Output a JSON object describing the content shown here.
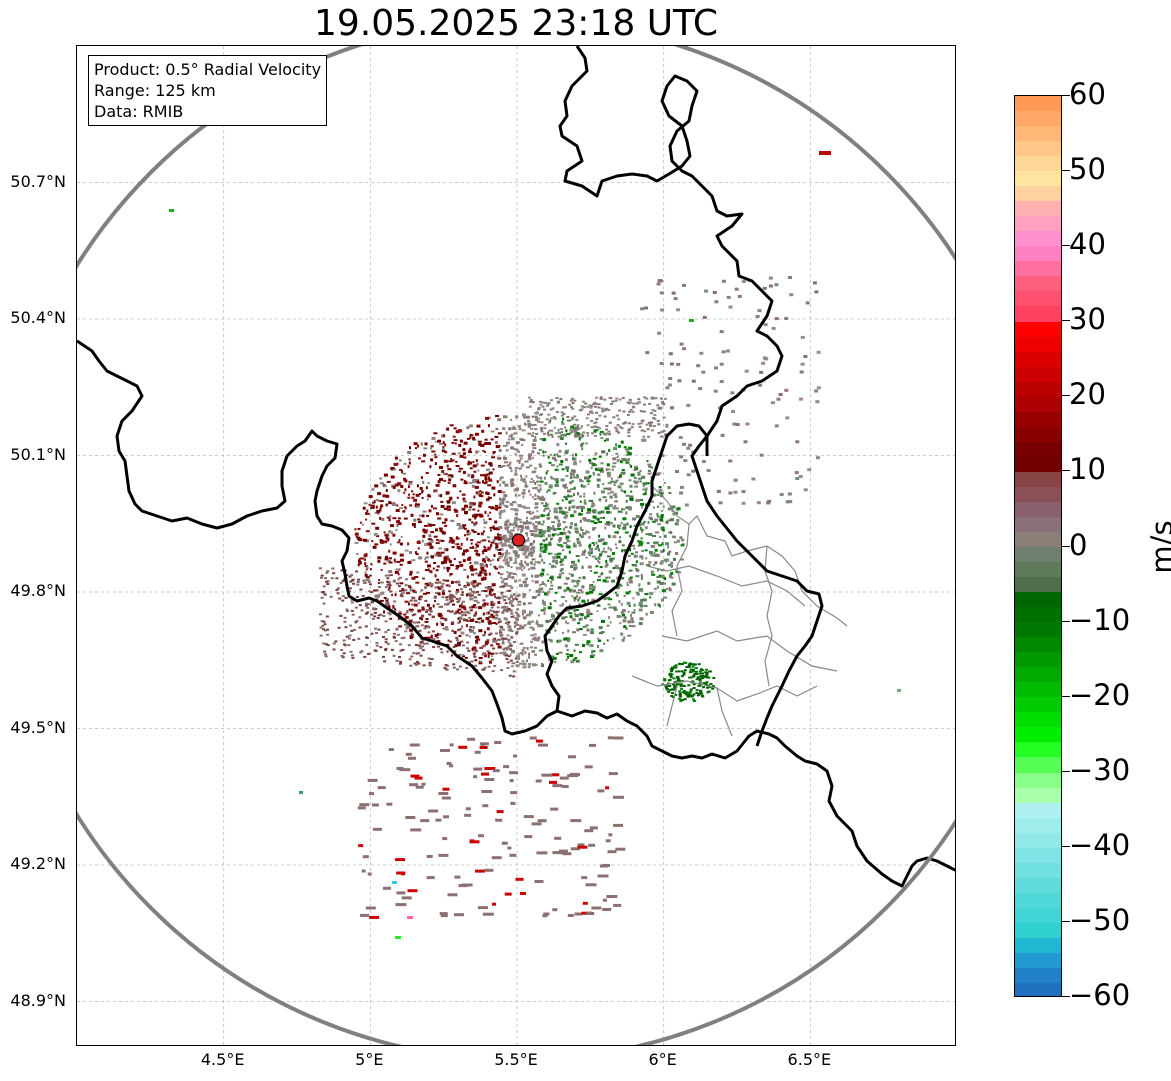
{
  "title": "19.05.2025 23:18 UTC",
  "info_box": {
    "product": "Product: 0.5° Radial Velocity",
    "range": "Range: 125 km",
    "data": "Data: RMIB"
  },
  "map": {
    "lon_range": [
      4.0,
      7.0
    ],
    "lat_range": [
      48.8,
      51.0
    ],
    "y_ticks": [
      "50.7°N",
      "50.4°N",
      "50.1°N",
      "49.8°N",
      "49.5°N",
      "49.2°N",
      "48.9°N"
    ],
    "x_ticks": [
      "4.5°E",
      "5°E",
      "5.5°E",
      "6°E",
      "6.5°E"
    ],
    "grid": "dashed light gray",
    "radar_site": {
      "lon": 5.505,
      "lat": 49.914
    },
    "range_ring_km": 125,
    "colors": {
      "border": "#000000",
      "range_ring": "#808080",
      "subregions": "#888888",
      "radar_marker": "#e02020"
    }
  },
  "colorbar": {
    "label": "m/s",
    "min": -60,
    "max": 60,
    "ticks": [
      "60",
      "50",
      "40",
      "30",
      "20",
      "10",
      "0",
      "−10",
      "−20",
      "−30",
      "−40",
      "−50",
      "−60"
    ],
    "colors_top_to_bottom": [
      "#ff9955",
      "#ffa866",
      "#ffb877",
      "#ffc888",
      "#ffd899",
      "#ffe4a0",
      "#ffd0a0",
      "#ffb0b0",
      "#ffa0c0",
      "#ff90d0",
      "#ff80c0",
      "#ff70a0",
      "#ff6080",
      "#ff5070",
      "#ff4060",
      "#ff0000",
      "#ee0000",
      "#dd0000",
      "#cc0000",
      "#bb0000",
      "#aa0000",
      "#990000",
      "#880000",
      "#770000",
      "#700000",
      "#884444",
      "#8a5058",
      "#8a6070",
      "#8a7078",
      "#8a8078",
      "#708070",
      "#607a5c",
      "#506e4a",
      "#006600",
      "#007000",
      "#007800",
      "#008800",
      "#009900",
      "#00aa00",
      "#00bb00",
      "#00cc00",
      "#00dd00",
      "#00ee00",
      "#22ff22",
      "#55ff55",
      "#88ff88",
      "#aaffaa",
      "#b0f0f0",
      "#a0ecec",
      "#90e8e8",
      "#80e4e4",
      "#70e0e0",
      "#60dcdc",
      "#50d8d8",
      "#40d4d4",
      "#30d0d0",
      "#20b8d0",
      "#209ad0",
      "#2080c8",
      "#2070c0"
    ]
  }
}
